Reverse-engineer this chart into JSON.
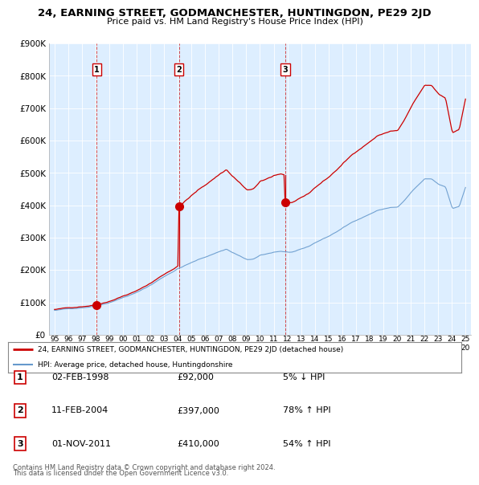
{
  "title": "24, EARNING STREET, GODMANCHESTER, HUNTINGDON, PE29 2JD",
  "subtitle": "Price paid vs. HM Land Registry's House Price Index (HPI)",
  "red_label": "24, EARNING STREET, GODMANCHESTER, HUNTINGDON, PE29 2JD (detached house)",
  "blue_label": "HPI: Average price, detached house, Huntingdonshire",
  "transactions": [
    {
      "num": 1,
      "date": "02-FEB-1998",
      "price": 92000,
      "pct": "5%",
      "dir": "↓"
    },
    {
      "num": 2,
      "date": "11-FEB-2004",
      "price": 397000,
      "pct": "78%",
      "dir": "↑"
    },
    {
      "num": 3,
      "date": "01-NOV-2011",
      "price": 410000,
      "pct": "54%",
      "dir": "↑"
    }
  ],
  "footnote1": "Contains HM Land Registry data © Crown copyright and database right 2024.",
  "footnote2": "This data is licensed under the Open Government Licence v3.0.",
  "red_color": "#cc0000",
  "blue_color": "#6699cc",
  "grid_color": "#cccccc",
  "background_color": "#ffffff",
  "plot_bg_color": "#ddeeff",
  "ylim": [
    0,
    900000
  ],
  "yticks": [
    0,
    100000,
    200000,
    300000,
    400000,
    500000,
    600000,
    700000,
    800000,
    900000
  ],
  "x_start_year": 1995,
  "x_end_year": 2025
}
